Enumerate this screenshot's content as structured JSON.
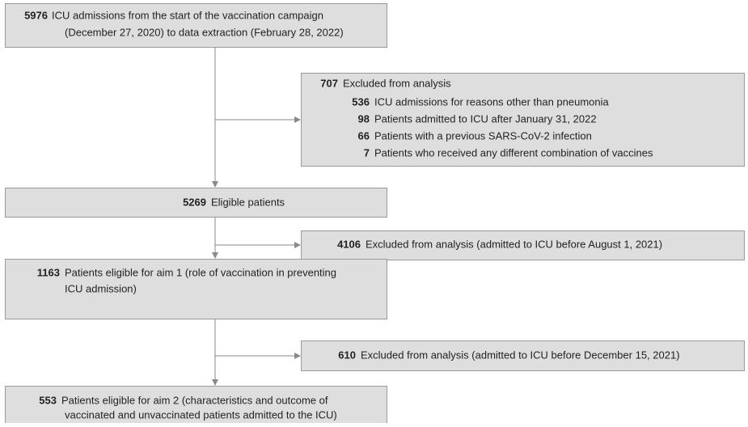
{
  "nodes": [
    {
      "count": 5976,
      "lines": [
        "ICU admissions from the start of the vaccination campaign",
        "(December 27, 2020) to data extraction (February 28, 2022)"
      ]
    },
    {
      "count": 707,
      "label": "Excluded from analysis",
      "items": [
        {
          "count": 536,
          "label": "ICU admissions for reasons other than pneumonia"
        },
        {
          "count": 98,
          "label": "Patients admitted to ICU after January 31, 2022"
        },
        {
          "count": 66,
          "label": "Patients with a previous SARS-CoV-2 infection"
        },
        {
          "count": 7,
          "label": "Patients who received any different combination of vaccines"
        }
      ]
    },
    {
      "count": 5269,
      "lines": [
        "Eligible patients"
      ]
    },
    {
      "count": 4106,
      "lines": [
        "Excluded from analysis (admitted to ICU before August 1, 2021)"
      ]
    },
    {
      "count": 1163,
      "lines": [
        "Patients eligible for aim 1 (role of vaccination in preventing",
        "ICU admission)"
      ]
    },
    {
      "count": 610,
      "lines": [
        "Excluded from analysis (admitted to ICU before December 15, 2021)"
      ]
    },
    {
      "count": 553,
      "lines": [
        "Patients eligible for aim 2 (characteristics and outcome of",
        "vaccinated and unvaccinated patients admitted to the ICU)"
      ]
    }
  ]
}
